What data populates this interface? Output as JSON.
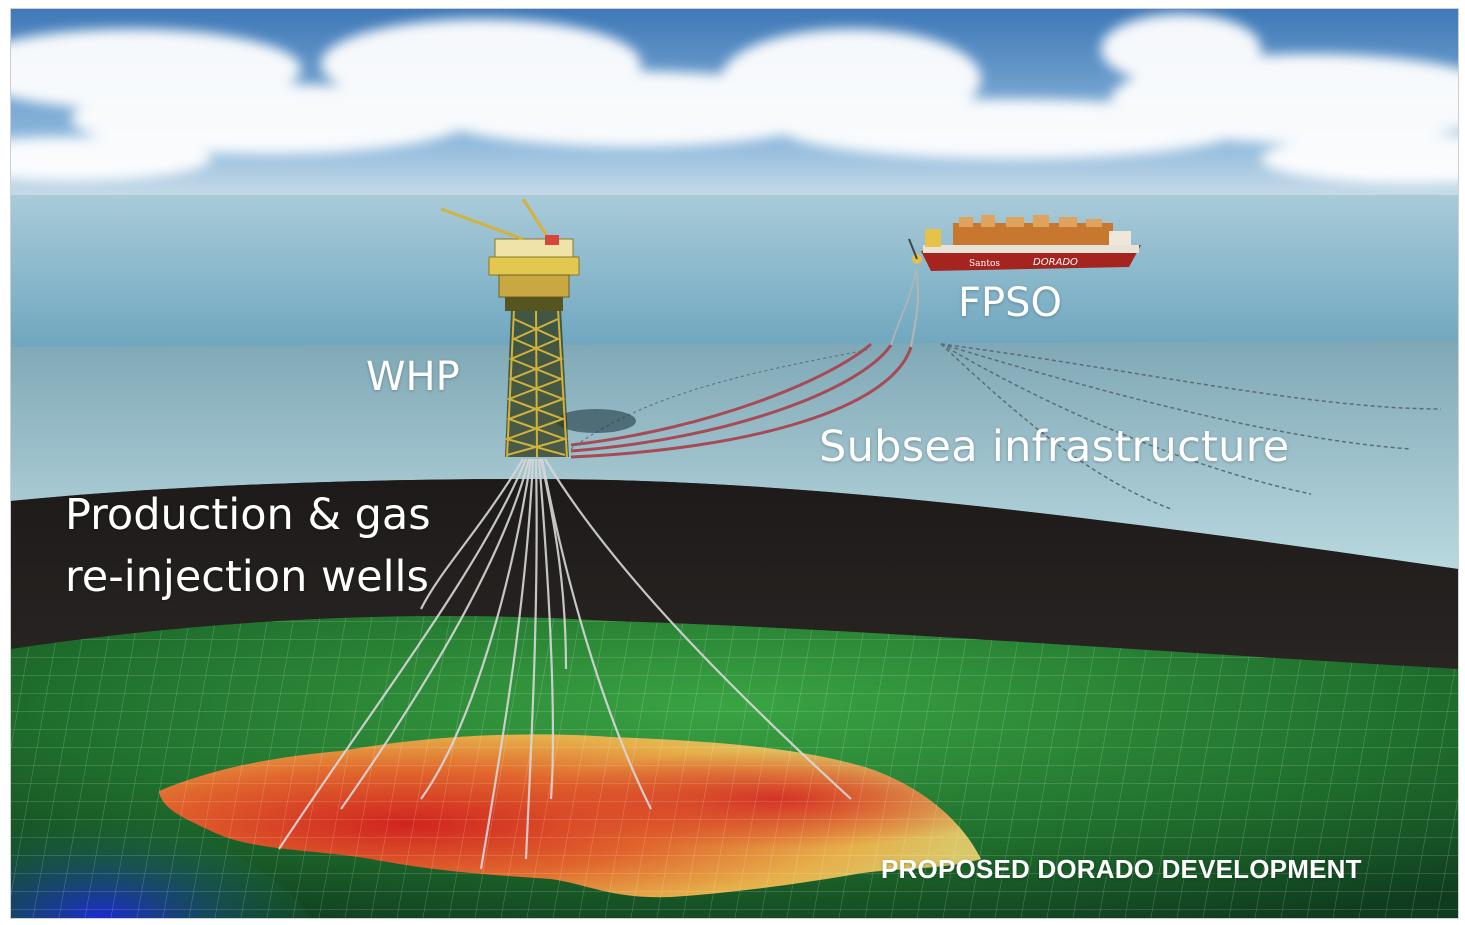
{
  "labels": {
    "whp": "WHP",
    "fpso": "FPSO",
    "subsea": "Subsea infrastructure",
    "wells": "Production & gas re-injection wells",
    "title": "PROPOSED DORADO DEVELOPMENT"
  },
  "vessel": {
    "hull_text_left": "Santos",
    "hull_text_right": "DORADO"
  },
  "colors": {
    "sky": "#4f86c0",
    "sea_surface": "#7fb5c8",
    "water_column": "#a9cdd6",
    "seabed_dark": "#2a2624",
    "reservoir_hot": "#d5352a",
    "reservoir_warm": "#e8b04a",
    "terrain_green": "#2f8a38",
    "hull_red": "#a62420",
    "label_text": "#ffffff"
  }
}
